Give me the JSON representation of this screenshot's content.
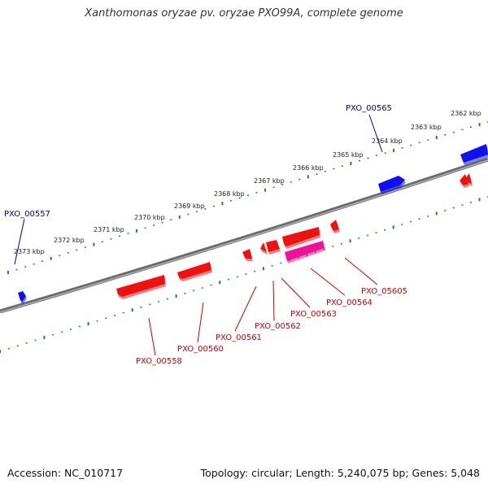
{
  "title": "Xanthomonas oryzae pv. oryzae PXO99A, complete genome",
  "accession_text": "Accession: NC_010717",
  "summary_text": "Topology: circular; Length: 5,240,075 bp; Genes: 5,048",
  "colors": {
    "backbone": "#7a7a7a",
    "tick": "#1e8a1e",
    "forward_gene": "#1010ee",
    "reverse_gene": "#ee1111",
    "pseudo_gene": "#ee1199",
    "forward_label": "#0000aa",
    "reverse_label": "#cc0000"
  },
  "kbp_labels": [
    {
      "kbp": 2373,
      "text": "2373 kbp"
    },
    {
      "kbp": 2372,
      "text": "2372 kbp"
    },
    {
      "kbp": 2371,
      "text": "2371 kbp"
    },
    {
      "kbp": 2370,
      "text": "2370 kbp"
    },
    {
      "kbp": 2369,
      "text": "2369 kbp"
    },
    {
      "kbp": 2368,
      "text": "2368 kbp"
    },
    {
      "kbp": 2367,
      "text": "2367 kbp"
    },
    {
      "kbp": 2366,
      "text": "2366 kbp"
    },
    {
      "kbp": 2365,
      "text": "2365 kbp"
    },
    {
      "kbp": 2364,
      "text": "2364 kbp"
    },
    {
      "kbp": 2363,
      "text": "2363 kbp"
    },
    {
      "kbp": 2362,
      "text": "2362 kbp"
    }
  ],
  "genes": [
    {
      "name": "PXO_00557",
      "strand": "forward",
      "type": "gene"
    },
    {
      "name": "PXO_00565",
      "strand": "forward",
      "type": "gene"
    },
    {
      "name": "PXO_00558",
      "strand": "reverse",
      "type": "gene"
    },
    {
      "name": "PXO_00560",
      "strand": "reverse",
      "type": "gene"
    },
    {
      "name": "PXO_00561",
      "strand": "reverse",
      "type": "gene"
    },
    {
      "name": "PXO_00562",
      "strand": "reverse",
      "type": "gene"
    },
    {
      "name": "PXO_00563",
      "strand": "reverse",
      "type": "pseudo"
    },
    {
      "name": "PXO_00564",
      "strand": "reverse",
      "type": "gene"
    },
    {
      "name": "PXO_05605",
      "strand": "reverse",
      "type": "gene"
    }
  ]
}
